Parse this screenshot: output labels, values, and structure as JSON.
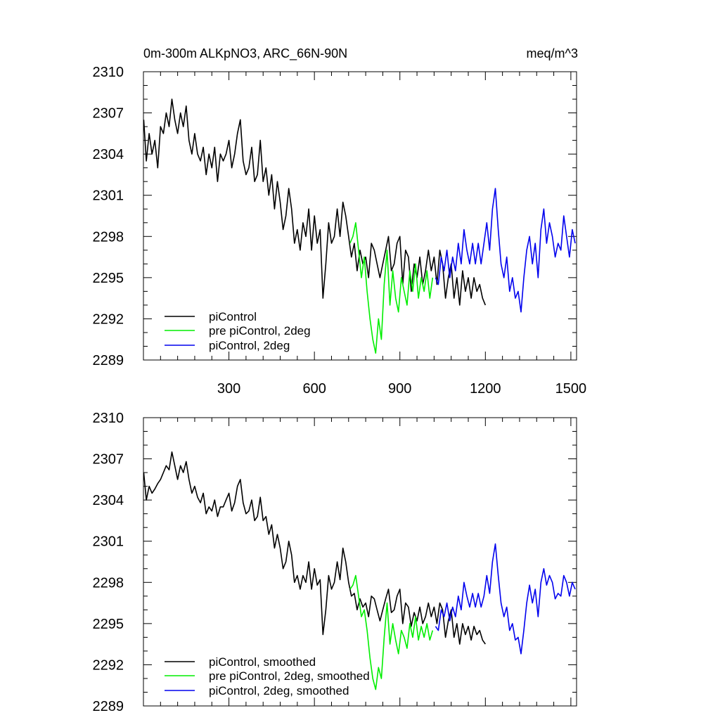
{
  "chart_data": [
    {
      "type": "line",
      "title": "0m-300m ALKpNO3, ARC_66N-90N",
      "units": "meq/m^3",
      "xlim": [
        0,
        1520
      ],
      "ylim": [
        2289,
        2310
      ],
      "xticks": [
        300,
        600,
        900,
        1200,
        1500
      ],
      "yticks": [
        2289,
        2292,
        2295,
        2298,
        2301,
        2304,
        2307,
        2310
      ],
      "series": [
        {
          "name": "piControl",
          "color": "#000000",
          "x": [
            1,
            10,
            20,
            30,
            40,
            50,
            60,
            70,
            80,
            90,
            100,
            110,
            120,
            130,
            140,
            150,
            160,
            170,
            180,
            190,
            200,
            210,
            220,
            230,
            240,
            250,
            260,
            270,
            280,
            290,
            300,
            310,
            320,
            330,
            340,
            350,
            360,
            370,
            380,
            390,
            400,
            410,
            420,
            430,
            440,
            450,
            460,
            470,
            480,
            490,
            500,
            510,
            520,
            530,
            540,
            550,
            560,
            570,
            580,
            590,
            600,
            610,
            620,
            630,
            640,
            650,
            660,
            670,
            680,
            690,
            700,
            710,
            720,
            730,
            740,
            750,
            760,
            770,
            780,
            790,
            800,
            810,
            820,
            830,
            840,
            850,
            860,
            870,
            880,
            890,
            900,
            910,
            920,
            930,
            940,
            950,
            960,
            970,
            980,
            990,
            1000,
            1010,
            1020,
            1030,
            1040,
            1050,
            1060,
            1070,
            1080,
            1090,
            1100,
            1110,
            1120,
            1130,
            1140,
            1150,
            1160,
            1170,
            1180,
            1190,
            1200
          ],
          "y": [
            2306.5,
            2303.5,
            2305.5,
            2304.0,
            2305.0,
            2303.0,
            2306.0,
            2305.5,
            2307.0,
            2306.0,
            2308.0,
            2306.5,
            2305.5,
            2307.0,
            2306.0,
            2307.5,
            2305.0,
            2304.0,
            2305.5,
            2304.0,
            2303.5,
            2304.5,
            2302.5,
            2304.0,
            2303.0,
            2304.5,
            2302.0,
            2304.0,
            2303.5,
            2304.0,
            2305.0,
            2303.0,
            2304.0,
            2305.5,
            2306.5,
            2303.5,
            2302.5,
            2303.0,
            2304.5,
            2302.0,
            2302.5,
            2305.0,
            2302.0,
            2303.0,
            2301.0,
            2302.5,
            2300.0,
            2302.0,
            2300.5,
            2298.5,
            2299.5,
            2301.5,
            2300.0,
            2297.5,
            2298.5,
            2297.0,
            2299.0,
            2298.0,
            2300.0,
            2297.0,
            2299.5,
            2297.5,
            2298.5,
            2293.5,
            2296.0,
            2299.0,
            2297.5,
            2298.0,
            2300.0,
            2298.0,
            2300.5,
            2299.5,
            2298.0,
            2296.5,
            2297.5,
            2295.5,
            2297.0,
            2296.0,
            2296.5,
            2295.0,
            2297.5,
            2297.0,
            2296.0,
            2295.0,
            2296.0,
            2297.0,
            2298.0,
            2295.5,
            2296.0,
            2297.5,
            2298.0,
            2294.5,
            2297.0,
            2296.5,
            2294.0,
            2296.0,
            2295.0,
            2296.5,
            2294.5,
            2295.5,
            2297.0,
            2295.5,
            2296.5,
            2294.5,
            2297.0,
            2296.0,
            2293.5,
            2295.0,
            2296.0,
            2293.5,
            2295.0,
            2293.0,
            2295.5,
            2294.0,
            2295.0,
            2293.5,
            2295.0,
            2294.0,
            2294.5,
            2293.5,
            2293.0
          ]
        },
        {
          "name": "pre piControl, 2deg",
          "color": "#00ee00",
          "x": [
            725,
            735,
            745,
            755,
            765,
            775,
            785,
            795,
            805,
            815,
            825,
            835,
            845,
            855,
            865,
            875,
            885,
            895,
            905,
            915,
            925,
            935,
            945,
            955,
            965,
            975,
            985,
            995,
            1005,
            1015
          ],
          "y": [
            2297.5,
            2298.0,
            2299.0,
            2297.0,
            2295.0,
            2296.5,
            2294.0,
            2292.0,
            2290.5,
            2289.5,
            2292.0,
            2290.5,
            2294.5,
            2297.0,
            2293.0,
            2295.5,
            2293.5,
            2292.5,
            2295.0,
            2294.0,
            2293.0,
            2295.5,
            2294.0,
            2296.0,
            2293.5,
            2295.0,
            2294.0,
            2295.5,
            2293.5,
            2295.0
          ]
        },
        {
          "name": "piControl, 2deg",
          "color": "#0000ee",
          "x": [
            1025,
            1035,
            1045,
            1055,
            1065,
            1075,
            1085,
            1095,
            1105,
            1115,
            1125,
            1135,
            1145,
            1155,
            1165,
            1175,
            1185,
            1195,
            1205,
            1215,
            1225,
            1235,
            1245,
            1255,
            1265,
            1275,
            1285,
            1295,
            1305,
            1315,
            1325,
            1335,
            1345,
            1355,
            1365,
            1375,
            1385,
            1395,
            1405,
            1415,
            1425,
            1435,
            1445,
            1455,
            1465,
            1475,
            1485,
            1495,
            1505,
            1515
          ],
          "y": [
            2295.0,
            2294.5,
            2296.5,
            2295.5,
            2297.0,
            2295.0,
            2296.5,
            2295.5,
            2297.5,
            2296.0,
            2298.5,
            2297.0,
            2296.0,
            2297.5,
            2296.0,
            2297.5,
            2296.0,
            2297.5,
            2299.0,
            2297.0,
            2300.0,
            2301.5,
            2298.5,
            2296.0,
            2295.0,
            2296.5,
            2294.0,
            2295.0,
            2293.5,
            2294.0,
            2292.5,
            2295.0,
            2297.0,
            2298.0,
            2296.0,
            2297.5,
            2295.0,
            2298.5,
            2300.0,
            2297.5,
            2299.0,
            2298.0,
            2296.5,
            2297.5,
            2297.0,
            2299.5,
            2298.0,
            2296.5,
            2298.5,
            2297.5
          ]
        }
      ]
    },
    {
      "type": "line",
      "xlim": [
        0,
        1520
      ],
      "ylim": [
        2289,
        2310
      ],
      "xticks": [
        300,
        600,
        900,
        1200,
        1500
      ],
      "yticks": [
        2289,
        2292,
        2295,
        2298,
        2301,
        2304,
        2307,
        2310
      ],
      "series": [
        {
          "name": "piControl, smoothed",
          "color": "#000000",
          "x": [
            1,
            10,
            20,
            30,
            40,
            50,
            60,
            70,
            80,
            90,
            100,
            110,
            120,
            130,
            140,
            150,
            160,
            170,
            180,
            190,
            200,
            210,
            220,
            230,
            240,
            250,
            260,
            270,
            280,
            290,
            300,
            310,
            320,
            330,
            340,
            350,
            360,
            370,
            380,
            390,
            400,
            410,
            420,
            430,
            440,
            450,
            460,
            470,
            480,
            490,
            500,
            510,
            520,
            530,
            540,
            550,
            560,
            570,
            580,
            590,
            600,
            610,
            620,
            630,
            640,
            650,
            660,
            670,
            680,
            690,
            700,
            710,
            720,
            730,
            740,
            750,
            760,
            770,
            780,
            790,
            800,
            810,
            820,
            830,
            840,
            850,
            860,
            870,
            880,
            890,
            900,
            910,
            920,
            930,
            940,
            950,
            960,
            970,
            980,
            990,
            1000,
            1010,
            1020,
            1030,
            1040,
            1050,
            1060,
            1070,
            1080,
            1090,
            1100,
            1110,
            1120,
            1130,
            1140,
            1150,
            1160,
            1170,
            1180,
            1190,
            1200
          ],
          "y": [
            2306.0,
            2304.0,
            2305.0,
            2304.5,
            2304.8,
            2305.2,
            2305.5,
            2306.0,
            2306.5,
            2306.2,
            2307.5,
            2306.5,
            2305.5,
            2306.5,
            2306.0,
            2306.8,
            2305.5,
            2304.5,
            2305.0,
            2304.2,
            2303.8,
            2304.5,
            2303.0,
            2303.5,
            2303.2,
            2304.0,
            2302.8,
            2303.5,
            2303.5,
            2304.0,
            2304.5,
            2303.2,
            2303.8,
            2305.0,
            2305.5,
            2303.8,
            2303.0,
            2303.2,
            2304.0,
            2302.5,
            2302.8,
            2304.2,
            2302.5,
            2302.8,
            2301.5,
            2302.2,
            2300.5,
            2301.5,
            2300.5,
            2299.0,
            2299.5,
            2301.0,
            2300.0,
            2298.0,
            2298.5,
            2297.5,
            2298.5,
            2298.0,
            2299.5,
            2297.5,
            2299.0,
            2297.8,
            2298.2,
            2294.2,
            2296.0,
            2298.5,
            2297.5,
            2298.0,
            2299.5,
            2298.2,
            2300.5,
            2299.5,
            2298.0,
            2297.0,
            2297.2,
            2296.0,
            2296.8,
            2296.2,
            2296.5,
            2295.5,
            2297.0,
            2296.8,
            2296.0,
            2295.2,
            2296.0,
            2296.8,
            2297.5,
            2295.8,
            2296.0,
            2297.0,
            2297.5,
            2295.0,
            2296.5,
            2296.2,
            2294.8,
            2295.8,
            2295.2,
            2296.2,
            2295.0,
            2295.5,
            2296.5,
            2295.5,
            2296.2,
            2295.0,
            2296.5,
            2296.0,
            2294.0,
            2295.2,
            2296.0,
            2294.0,
            2295.0,
            2293.5,
            2295.0,
            2294.2,
            2294.8,
            2293.8,
            2294.8,
            2294.2,
            2294.5,
            2293.8,
            2293.5
          ]
        },
        {
          "name": "pre piControl, 2deg, smoothed",
          "color": "#00ee00",
          "x": [
            725,
            735,
            745,
            755,
            765,
            775,
            785,
            795,
            805,
            815,
            825,
            835,
            845,
            855,
            865,
            875,
            885,
            895,
            905,
            915,
            925,
            935,
            945,
            955,
            965,
            975,
            985,
            995,
            1005,
            1015
          ],
          "y": [
            2297.5,
            2297.8,
            2298.5,
            2297.0,
            2295.5,
            2296.0,
            2294.5,
            2292.5,
            2291.0,
            2290.2,
            2291.8,
            2291.0,
            2294.0,
            2296.5,
            2293.5,
            2295.0,
            2293.8,
            2292.8,
            2294.5,
            2294.0,
            2293.2,
            2295.0,
            2294.0,
            2295.5,
            2293.8,
            2294.8,
            2294.0,
            2295.0,
            2293.8,
            2294.5
          ]
        },
        {
          "name": "piControl, 2deg, smoothed",
          "color": "#0000ee",
          "x": [
            1025,
            1035,
            1045,
            1055,
            1065,
            1075,
            1085,
            1095,
            1105,
            1115,
            1125,
            1135,
            1145,
            1155,
            1165,
            1175,
            1185,
            1195,
            1205,
            1215,
            1225,
            1235,
            1245,
            1255,
            1265,
            1275,
            1285,
            1295,
            1305,
            1315,
            1325,
            1335,
            1345,
            1355,
            1365,
            1375,
            1385,
            1395,
            1405,
            1415,
            1425,
            1435,
            1445,
            1455,
            1465,
            1475,
            1485,
            1495,
            1505,
            1515
          ],
          "y": [
            2294.8,
            2294.5,
            2296.0,
            2295.5,
            2296.5,
            2295.2,
            2296.2,
            2295.5,
            2297.0,
            2296.0,
            2298.0,
            2297.0,
            2296.2,
            2297.2,
            2296.2,
            2297.2,
            2296.2,
            2297.0,
            2298.5,
            2297.2,
            2299.5,
            2300.8,
            2298.5,
            2296.5,
            2295.5,
            2296.2,
            2294.5,
            2295.0,
            2293.8,
            2294.0,
            2292.8,
            2294.5,
            2296.5,
            2297.8,
            2296.5,
            2297.5,
            2295.5,
            2298.0,
            2299.0,
            2297.8,
            2298.5,
            2298.0,
            2296.8,
            2297.2,
            2297.0,
            2298.5,
            2298.0,
            2297.0,
            2298.0,
            2297.5
          ]
        }
      ]
    }
  ]
}
